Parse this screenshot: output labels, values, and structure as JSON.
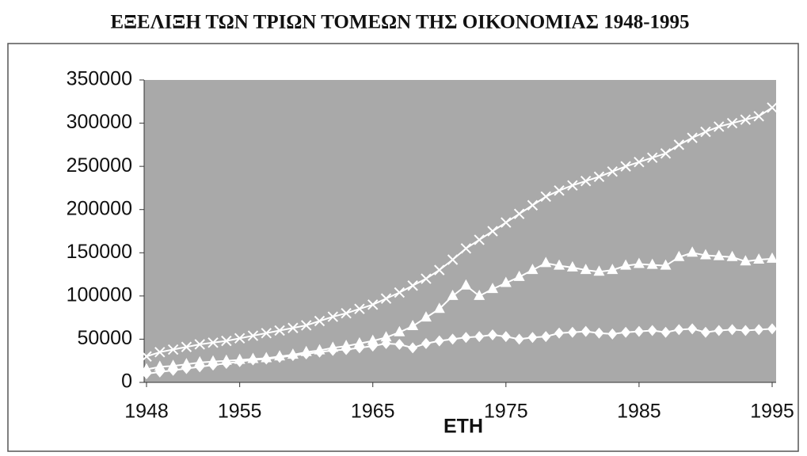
{
  "chart_data": {
    "type": "line",
    "title": "ΕΞΕΛΙΞΗ ΤΩΝ ΤΡΙΩΝ ΤΟΜΕΩΝ ΤΗΣ ΟΙΚΟΝΟΜΙΑΣ 1948-1995",
    "xlabel": "ΕΤΗ",
    "x": [
      1948,
      1949,
      1950,
      1951,
      1952,
      1953,
      1954,
      1955,
      1956,
      1957,
      1958,
      1959,
      1960,
      1961,
      1962,
      1963,
      1964,
      1965,
      1966,
      1967,
      1968,
      1969,
      1970,
      1971,
      1972,
      1973,
      1974,
      1975,
      1976,
      1977,
      1978,
      1979,
      1980,
      1981,
      1982,
      1983,
      1984,
      1985,
      1986,
      1987,
      1988,
      1989,
      1990,
      1991,
      1992,
      1993,
      1994,
      1995
    ],
    "series": [
      {
        "color": "#ffffff",
        "marker": "x",
        "values": [
          30000,
          35000,
          38000,
          41000,
          44000,
          46000,
          48000,
          51000,
          54000,
          57000,
          60000,
          63000,
          66000,
          71000,
          76000,
          80000,
          85000,
          90000,
          97000,
          104000,
          112000,
          120000,
          130000,
          142000,
          155000,
          165000,
          175000,
          185000,
          195000,
          205000,
          215000,
          222000,
          228000,
          233000,
          238000,
          244000,
          250000,
          255000,
          260000,
          265000,
          275000,
          283000,
          290000,
          296000,
          300000,
          304000,
          308000,
          318000
        ]
      },
      {
        "color": "#ffffff",
        "marker": "triangle",
        "values": [
          15000,
          18000,
          19000,
          21000,
          23000,
          24000,
          25000,
          26000,
          27000,
          28000,
          30000,
          32000,
          35000,
          37000,
          40000,
          42000,
          45000,
          48000,
          52000,
          58000,
          65000,
          75000,
          85000,
          100000,
          112000,
          100000,
          108000,
          115000,
          122000,
          130000,
          138000,
          135000,
          133000,
          130000,
          128000,
          130000,
          135000,
          137000,
          136000,
          135000,
          145000,
          150000,
          147000,
          146000,
          145000,
          140000,
          142000,
          143000
        ]
      },
      {
        "color": "#ffffff",
        "marker": "diamond",
        "values": [
          10000,
          12000,
          14000,
          16000,
          18000,
          20000,
          22000,
          24000,
          26000,
          27000,
          29000,
          31000,
          33000,
          35000,
          37000,
          38000,
          40000,
          42000,
          45000,
          44000,
          40000,
          45000,
          48000,
          50000,
          52000,
          53000,
          55000,
          53000,
          50000,
          52000,
          53000,
          57000,
          58000,
          59000,
          57000,
          56000,
          58000,
          59000,
          60000,
          58000,
          61000,
          62000,
          58000,
          60000,
          61000,
          60000,
          61000,
          62000
        ]
      }
    ],
    "xlim": [
      1948,
      1995
    ],
    "xticks": [
      1948,
      1955,
      1965,
      1975,
      1985,
      1995
    ],
    "ylim": [
      0,
      350000
    ],
    "yticks": [
      0,
      50000,
      100000,
      150000,
      200000,
      250000,
      300000,
      350000
    ],
    "plot_background": "#a9a9a9"
  }
}
